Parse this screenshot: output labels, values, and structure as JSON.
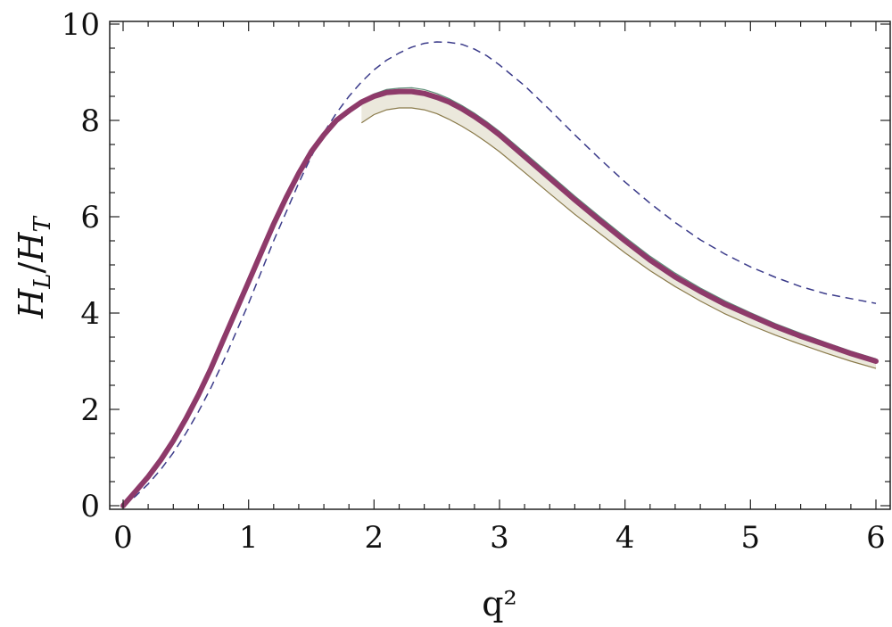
{
  "chart_data": {
    "type": "line",
    "title": "",
    "xlabel": "q²",
    "ylabel_main": "H",
    "ylabel_sub1": "L",
    "ylabel_sep": "/",
    "ylabel_sub2": "T",
    "xlim": [
      0,
      6
    ],
    "ylim": [
      0,
      10
    ],
    "xticks": [
      0,
      1,
      2,
      3,
      4,
      5,
      6
    ],
    "yticks": [
      0,
      2,
      4,
      6,
      8,
      10
    ],
    "grid": false,
    "colors": {
      "central": "#8e3a6a",
      "band_fill": "#ebe8dc",
      "band_upper_edge": "#5e8f7a",
      "band_lower_edge": "#8a7a4a",
      "dashed": "#3b3b8a",
      "axis": "#222222"
    },
    "series": [
      {
        "style": "solid-thick",
        "x": [
          0.0,
          0.1,
          0.2,
          0.3,
          0.4,
          0.5,
          0.6,
          0.7,
          0.8,
          0.9,
          1.0,
          1.1,
          1.2,
          1.3,
          1.4,
          1.5,
          1.6,
          1.7,
          1.8,
          1.9,
          2.0,
          2.1,
          2.2,
          2.3,
          2.4,
          2.5,
          2.6,
          2.7,
          2.8,
          2.9,
          3.0,
          3.2,
          3.4,
          3.6,
          3.8,
          4.0,
          4.2,
          4.4,
          4.6,
          4.8,
          5.0,
          5.2,
          5.4,
          5.6,
          5.8,
          6.0
        ],
        "y": [
          0.0,
          0.3,
          0.6,
          0.95,
          1.35,
          1.8,
          2.3,
          2.85,
          3.45,
          4.05,
          4.65,
          5.25,
          5.85,
          6.4,
          6.9,
          7.35,
          7.7,
          8.0,
          8.2,
          8.38,
          8.5,
          8.58,
          8.6,
          8.6,
          8.56,
          8.48,
          8.38,
          8.24,
          8.08,
          7.9,
          7.7,
          7.25,
          6.8,
          6.35,
          5.92,
          5.5,
          5.1,
          4.75,
          4.45,
          4.18,
          3.95,
          3.72,
          3.52,
          3.34,
          3.16,
          3.0
        ]
      },
      {
        "style": "band-upper",
        "x": [
          1.9,
          2.0,
          2.1,
          2.2,
          2.3,
          2.4,
          2.5,
          2.6,
          2.7,
          2.8,
          2.9,
          3.0,
          3.2,
          3.4,
          3.6,
          3.8,
          4.0,
          4.2,
          4.4,
          4.6,
          4.8,
          5.0,
          5.2,
          5.4,
          5.6,
          5.8,
          6.0
        ],
        "y": [
          8.42,
          8.55,
          8.64,
          8.67,
          8.68,
          8.64,
          8.56,
          8.45,
          8.31,
          8.15,
          7.97,
          7.77,
          7.33,
          6.88,
          6.43,
          6.0,
          5.58,
          5.18,
          4.83,
          4.52,
          4.25,
          4.01,
          3.78,
          3.58,
          3.39,
          3.21,
          3.05
        ]
      },
      {
        "style": "band-lower",
        "x": [
          1.9,
          2.0,
          2.1,
          2.2,
          2.3,
          2.4,
          2.5,
          2.6,
          2.7,
          2.8,
          2.9,
          3.0,
          3.2,
          3.4,
          3.6,
          3.8,
          4.0,
          4.2,
          4.4,
          4.6,
          4.8,
          5.0,
          5.2,
          5.4,
          5.6,
          5.8,
          6.0
        ],
        "y": [
          7.95,
          8.12,
          8.22,
          8.26,
          8.26,
          8.22,
          8.14,
          8.02,
          7.88,
          7.72,
          7.54,
          7.35,
          6.92,
          6.48,
          6.05,
          5.65,
          5.25,
          4.88,
          4.55,
          4.25,
          3.98,
          3.75,
          3.54,
          3.35,
          3.17,
          3.0,
          2.85
        ]
      },
      {
        "style": "dashed",
        "x": [
          0.0,
          0.1,
          0.2,
          0.3,
          0.4,
          0.5,
          0.6,
          0.7,
          0.8,
          0.9,
          1.0,
          1.1,
          1.2,
          1.3,
          1.4,
          1.5,
          1.6,
          1.7,
          1.8,
          1.9,
          2.0,
          2.1,
          2.2,
          2.3,
          2.4,
          2.5,
          2.6,
          2.7,
          2.8,
          2.9,
          3.0,
          3.2,
          3.4,
          3.6,
          3.8,
          4.0,
          4.2,
          4.4,
          4.6,
          4.8,
          5.0,
          5.2,
          5.4,
          5.6,
          5.8,
          6.0
        ],
        "y": [
          0.0,
          0.2,
          0.45,
          0.75,
          1.1,
          1.5,
          1.95,
          2.45,
          3.0,
          3.6,
          4.2,
          4.85,
          5.5,
          6.1,
          6.7,
          7.25,
          7.75,
          8.15,
          8.5,
          8.8,
          9.05,
          9.25,
          9.4,
          9.52,
          9.6,
          9.63,
          9.62,
          9.58,
          9.48,
          9.34,
          9.15,
          8.72,
          8.22,
          7.7,
          7.2,
          6.72,
          6.28,
          5.88,
          5.52,
          5.22,
          4.96,
          4.74,
          4.55,
          4.4,
          4.3,
          4.2
        ]
      }
    ]
  }
}
